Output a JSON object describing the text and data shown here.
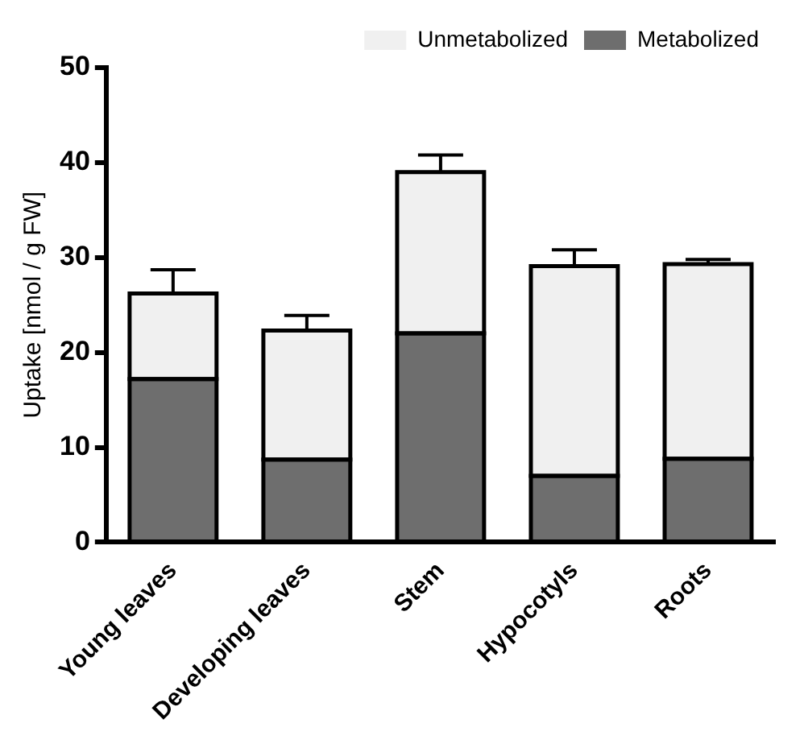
{
  "chart_data": {
    "type": "bar",
    "stacked": true,
    "ylabel": "Uptake [nmol / g FW]",
    "categories": [
      "Young leaves",
      "Developing leaves",
      "Stem",
      "Hypocotyls",
      "Roots"
    ],
    "series": [
      {
        "name": "Metabolized",
        "color": "#6e6e6e",
        "values": [
          17.2,
          8.7,
          22.0,
          7.0,
          8.8
        ]
      },
      {
        "name": "Unmetabolized",
        "color": "#f0f0f0",
        "values": [
          9.0,
          13.6,
          17.0,
          22.1,
          20.5
        ],
        "errors": [
          2.5,
          1.6,
          1.8,
          1.7,
          0.5
        ]
      }
    ],
    "ylim": [
      0,
      50
    ],
    "yticks": [
      0,
      10,
      20,
      30,
      40,
      50
    ],
    "grid": false,
    "legend": "top right"
  }
}
